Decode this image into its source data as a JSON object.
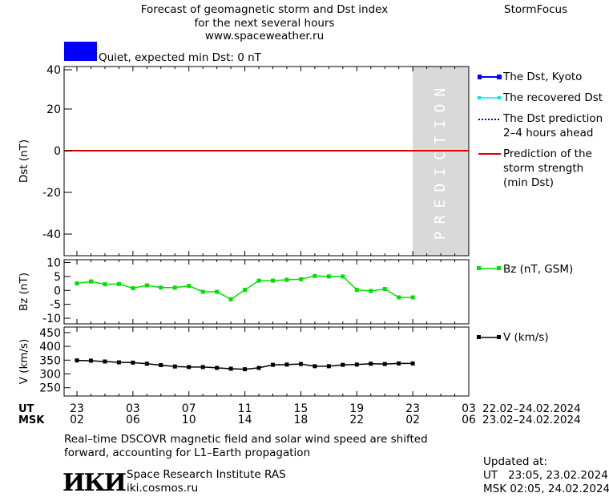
{
  "header": {
    "title_line1": "Forecast of geomagnetic storm and Dst index",
    "title_line2": "for the next several hours",
    "title_line3": "www.spaceweather.ru",
    "brand": "StormFocus"
  },
  "status": {
    "text": "Quiet, expected min Dst: 0 nT",
    "color": "#0000ff"
  },
  "legend": {
    "dst_kyoto": "The Dst, Kyoto",
    "dst_recovered": "The recovered Dst",
    "dst_prediction_1": "The Dst prediction",
    "dst_prediction_2": "2–4 hours ahead",
    "storm_1": "Prediction of the",
    "storm_2": "storm strength",
    "storm_3": "(min Dst)",
    "bz": "Bz (nT, GSM)",
    "v": "V (km/s)"
  },
  "time_axis": {
    "ut_label": "UT",
    "msk_label": "MSK",
    "ut_ticks": [
      "23",
      "03",
      "07",
      "11",
      "15",
      "19",
      "23",
      "03"
    ],
    "msk_ticks": [
      "02",
      "06",
      "10",
      "14",
      "18",
      "22",
      "02",
      "06"
    ],
    "ut_range": "22.02–24.02.2024",
    "msk_range": "23.02–24.02.2024"
  },
  "footer": {
    "note_line1": "Real–time DSCOVR magnetic field and solar wind speed are shifted",
    "note_line2": "forward, accounting for L1–Earth propagation",
    "logo_text": "ИКИ",
    "institute": "Space Research Institute RAS",
    "website": "iki.cosmos.ru",
    "updated_label": "Updated at:",
    "updated_ut": "UT   23:05, 23.02.2024",
    "updated_msk": "MSK 02:05, 24.02.2024"
  },
  "chart_data": [
    {
      "type": "line",
      "title": "Dst",
      "ylabel": "Dst (nT)",
      "ylim": [
        -50,
        40
      ],
      "yticks": [
        40,
        20,
        0,
        -20,
        -40
      ],
      "prediction_label": "PREDICTION",
      "prediction_range_hours": [
        23,
        27
      ],
      "series": [
        {
          "name": "Prediction of the storm strength (min Dst)",
          "color": "#e00000",
          "x": [
            0,
            27
          ],
          "values": [
            0,
            0
          ]
        }
      ],
      "colors": {
        "kyoto": "#0000ff",
        "recovered": "#00e5e5",
        "prediction": "#0000c8",
        "storm": "#e00000",
        "shade": "#d9d9d9"
      }
    },
    {
      "type": "line",
      "ylabel": "Bz (nT)",
      "ylim": [
        -12,
        11
      ],
      "yticks": [
        10,
        5,
        0,
        -5,
        -10
      ],
      "series": [
        {
          "name": "Bz (nT, GSM)",
          "color": "#00e000",
          "x": [
            0,
            1,
            2,
            3,
            4,
            5,
            6,
            7,
            8,
            9,
            10,
            11,
            12,
            13,
            14,
            15,
            16,
            17,
            18,
            19,
            20,
            21,
            22,
            23,
            24
          ],
          "values": [
            2.5,
            3.2,
            2.2,
            2.3,
            0.8,
            1.8,
            1.0,
            1.0,
            1.6,
            -0.5,
            -0.5,
            -3.2,
            0.2,
            3.5,
            3.5,
            3.8,
            4.0,
            5.2,
            5.0,
            5.0,
            0.2,
            -0.2,
            0.5,
            -2.5,
            -2.5
          ]
        }
      ]
    },
    {
      "type": "line",
      "ylabel": "V (km/s)",
      "ylim": [
        220,
        470
      ],
      "yticks": [
        450,
        400,
        350,
        300,
        250
      ],
      "series": [
        {
          "name": "V (km/s)",
          "color": "#000000",
          "x": [
            0,
            1,
            2,
            3,
            4,
            5,
            6,
            7,
            8,
            9,
            10,
            11,
            12,
            13,
            14,
            15,
            16,
            17,
            18,
            19,
            20,
            21,
            22,
            23,
            24
          ],
          "values": [
            349,
            348,
            345,
            342,
            341,
            337,
            332,
            327,
            325,
            325,
            322,
            319,
            317,
            322,
            333,
            334,
            336,
            328,
            328,
            333,
            334,
            337,
            336,
            338,
            338
          ]
        }
      ]
    }
  ]
}
